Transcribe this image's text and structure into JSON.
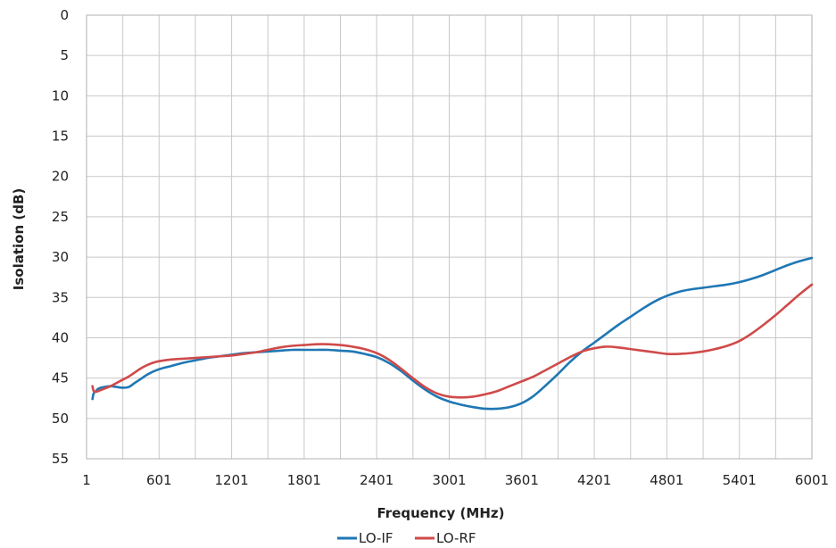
{
  "chart_data": {
    "type": "line",
    "title": "",
    "xlabel": "Frequency (MHz)",
    "ylabel": "Isolation (dB)",
    "xlim": [
      1,
      6001
    ],
    "ylim": [
      0,
      55
    ],
    "y_inverted": true,
    "grid": true,
    "legend_position": "bottom",
    "x_ticks": [
      1,
      601,
      1201,
      1801,
      2401,
      3001,
      3601,
      4201,
      4801,
      5401,
      6001
    ],
    "y_ticks": [
      0,
      5,
      10,
      15,
      20,
      25,
      30,
      35,
      40,
      45,
      50,
      55
    ],
    "series": [
      {
        "name": "LO-IF",
        "color": "#1f77b4",
        "x": [
          50,
          60,
          80,
          100,
          150,
          200,
          250,
          300,
          350,
          400,
          450,
          500,
          550,
          601,
          700,
          800,
          900,
          1000,
          1100,
          1201,
          1300,
          1400,
          1500,
          1600,
          1700,
          1801,
          1900,
          2000,
          2100,
          2200,
          2300,
          2401,
          2500,
          2600,
          2700,
          2800,
          2900,
          3001,
          3100,
          3200,
          3300,
          3400,
          3500,
          3601,
          3700,
          3800,
          3900,
          4000,
          4100,
          4201,
          4300,
          4400,
          4500,
          4600,
          4700,
          4801,
          4900,
          5000,
          5100,
          5200,
          5300,
          5401,
          5500,
          5600,
          5700,
          5800,
          5900,
          6001
        ],
        "y": [
          47.6,
          46.9,
          46.6,
          46.3,
          46.1,
          46.0,
          46.1,
          46.2,
          46.1,
          45.6,
          45.1,
          44.6,
          44.2,
          43.9,
          43.5,
          43.1,
          42.8,
          42.5,
          42.3,
          42.1,
          41.9,
          41.8,
          41.7,
          41.6,
          41.5,
          41.5,
          41.5,
          41.5,
          41.6,
          41.7,
          42.0,
          42.4,
          43.1,
          44.1,
          45.3,
          46.4,
          47.3,
          47.9,
          48.3,
          48.6,
          48.8,
          48.8,
          48.6,
          48.1,
          47.2,
          45.9,
          44.5,
          43.0,
          41.7,
          40.6,
          39.5,
          38.4,
          37.4,
          36.4,
          35.5,
          34.8,
          34.3,
          34.0,
          33.8,
          33.6,
          33.4,
          33.1,
          32.7,
          32.2,
          31.6,
          31.0,
          30.5,
          30.1
        ]
      },
      {
        "name": "LO-RF",
        "color": "#d04a4a",
        "x": [
          50,
          60,
          80,
          100,
          150,
          200,
          250,
          300,
          350,
          400,
          450,
          500,
          550,
          601,
          700,
          800,
          900,
          1000,
          1100,
          1201,
          1300,
          1400,
          1500,
          1600,
          1700,
          1801,
          1900,
          2000,
          2100,
          2200,
          2300,
          2401,
          2500,
          2600,
          2700,
          2800,
          2900,
          3001,
          3100,
          3200,
          3300,
          3400,
          3500,
          3601,
          3700,
          3800,
          3900,
          4000,
          4100,
          4201,
          4300,
          4400,
          4500,
          4600,
          4700,
          4801,
          4900,
          5000,
          5100,
          5200,
          5300,
          5401,
          5500,
          5600,
          5700,
          5800,
          5900,
          6001
        ],
        "y": [
          46.0,
          46.6,
          46.7,
          46.6,
          46.3,
          46.0,
          45.6,
          45.2,
          44.8,
          44.3,
          43.8,
          43.4,
          43.1,
          42.9,
          42.7,
          42.6,
          42.5,
          42.4,
          42.3,
          42.2,
          42.0,
          41.8,
          41.5,
          41.2,
          41.0,
          40.9,
          40.8,
          40.8,
          40.9,
          41.1,
          41.4,
          41.9,
          42.7,
          43.8,
          45.0,
          46.1,
          46.9,
          47.3,
          47.4,
          47.3,
          47.0,
          46.6,
          46.0,
          45.4,
          44.8,
          44.0,
          43.2,
          42.4,
          41.7,
          41.3,
          41.1,
          41.2,
          41.4,
          41.6,
          41.8,
          42.0,
          42.0,
          41.9,
          41.7,
          41.4,
          41.0,
          40.4,
          39.5,
          38.4,
          37.2,
          35.9,
          34.6,
          33.4
        ]
      }
    ]
  }
}
